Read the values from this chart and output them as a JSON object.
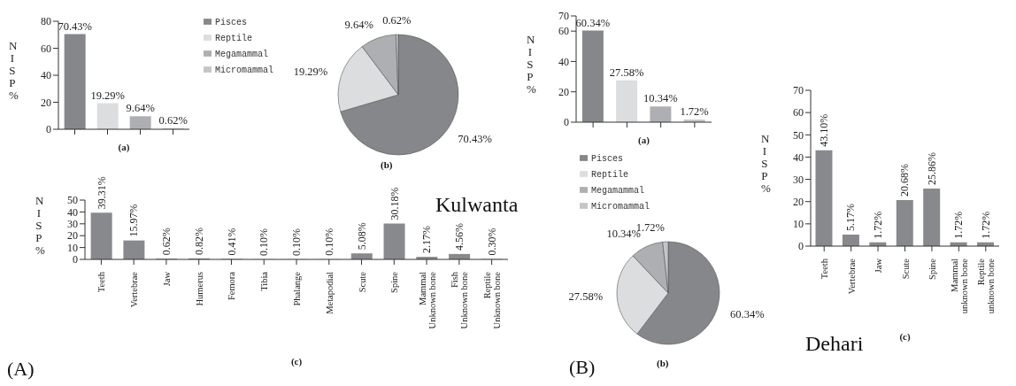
{
  "chart_data": [
    {
      "type": "bar",
      "categories": [
        null,
        null,
        null,
        null
      ],
      "values": [
        70.43,
        19.29,
        9.64,
        0.62
      ],
      "colors": [
        "#86878b",
        "#dcdddf",
        "#aeafb2",
        "#c4c5c7"
      ],
      "value_labels": [
        "70.43%",
        "19.29%",
        "9.64%",
        "0.62%"
      ],
      "ylabel": "NISP %",
      "xlabel": "(a)",
      "ylim": [
        0,
        80
      ],
      "yticks": [
        0,
        20,
        40,
        60,
        80
      ],
      "grid": false
    },
    {
      "type": "pie",
      "categories": [
        "Pisces",
        "Reptile",
        "Megamammal",
        "Micromammal"
      ],
      "values": [
        70.43,
        19.29,
        9.64,
        0.62
      ],
      "colors": [
        "#86878b",
        "#dcdddf",
        "#aeafb2",
        "#c4c5c7"
      ],
      "value_labels": [
        "70.43%",
        "19.29%",
        "9.64%",
        "0.62%"
      ],
      "legend": "left",
      "annotations": [
        "(b)"
      ]
    },
    {
      "type": "bar",
      "categories": [
        "Teeth",
        "Vertebrae",
        "Jaw",
        "Humerus",
        "Femora",
        "Tibia",
        "Phalange",
        "Metapodial",
        "Scute",
        "Spine",
        "Mammal\nUnknown bone",
        "Fish\nUnknown bone",
        "Reptile\nUnknown bone"
      ],
      "values": [
        39.31,
        15.97,
        0.62,
        0.82,
        0.41,
        0.1,
        0.1,
        0.1,
        5.08,
        30.18,
        2.17,
        4.56,
        0.3
      ],
      "color": "#88898c",
      "value_labels": [
        "39.31%",
        "15.97%",
        "0.62%",
        "0.82%",
        "0.41%",
        "0.10%",
        "0.10%",
        "0.10%",
        "5.08%",
        "30.18%",
        "2.17%",
        "4.56%",
        "0.30%"
      ],
      "ylabel": "NISP %",
      "xlabel": "(c)",
      "ylim": [
        0,
        50
      ],
      "yticks": [
        0,
        10,
        20,
        30,
        40,
        50
      ],
      "grid": false,
      "annotations": [
        "Kulwanta",
        "(A)"
      ]
    },
    {
      "type": "bar",
      "categories": [
        null,
        null,
        null,
        null
      ],
      "values": [
        60.34,
        27.58,
        10.34,
        1.72
      ],
      "colors": [
        "#86878b",
        "#dcdddf",
        "#aeafb2",
        "#c4c5c7"
      ],
      "value_labels": [
        "60.34%",
        "27.58%",
        "10.34%",
        "1.72%"
      ],
      "ylabel": "NISP %",
      "xlabel": "(a)",
      "ylim": [
        0,
        70
      ],
      "yticks": [
        0,
        20,
        40,
        60,
        70
      ],
      "grid": false
    },
    {
      "type": "pie",
      "categories": [
        "Pisces",
        "Reptile",
        "Megamammal",
        "Micromammal"
      ],
      "values": [
        60.34,
        27.58,
        10.34,
        1.72
      ],
      "colors": [
        "#86878b",
        "#dcdddf",
        "#aeafb2",
        "#c4c5c7"
      ],
      "value_labels": [
        "60.34%",
        "27.58%",
        "10.34%",
        "1.72%"
      ],
      "legend": "top",
      "annotations": [
        "(b)",
        "(B)"
      ]
    },
    {
      "type": "bar",
      "categories": [
        "Teeth",
        "Vertebrae",
        "Jaw",
        "Scute",
        "Spine",
        "Mammal\nunknown bone",
        "Reptile\nunknown bone"
      ],
      "values": [
        43.1,
        5.17,
        1.72,
        20.68,
        25.86,
        1.72,
        1.72
      ],
      "color": "#88898c",
      "value_labels": [
        "43.10%",
        "5.17%",
        "1.72%",
        "20.68%",
        "25.86%",
        "1.72%",
        "1.72%"
      ],
      "ylabel": "NISP %",
      "xlabel": "(c)",
      "ylim": [
        0,
        70
      ],
      "yticks": [
        0,
        10,
        20,
        30,
        40,
        50,
        60,
        70
      ],
      "grid": false,
      "annotations": [
        "Dehari"
      ]
    }
  ]
}
